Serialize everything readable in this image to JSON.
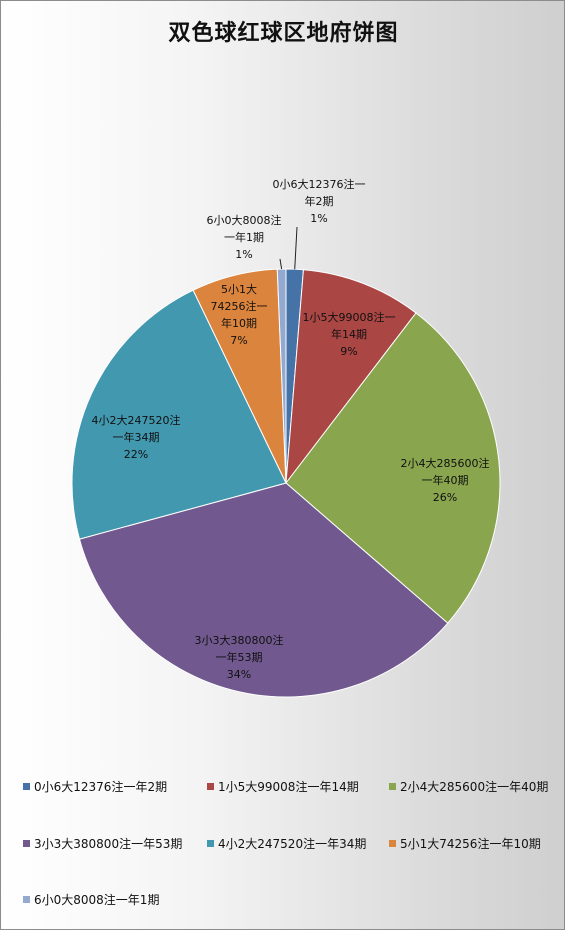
{
  "chart_data": {
    "type": "pie",
    "title": "双色球红球区地府饼图",
    "slices": [
      {
        "name": "0小6大12376注一年2期",
        "value": 2,
        "color": "#4572A7",
        "label_lines": [
          "0小6大12376注一",
          "年2期",
          "1%"
        ]
      },
      {
        "name": "1小5大99008注一年14期",
        "value": 14,
        "color": "#AA4643",
        "label_lines": [
          "1小5大99008注一",
          "年14期",
          "9%"
        ]
      },
      {
        "name": "2小4大285600注一年40期",
        "value": 40,
        "color": "#89A54E",
        "label_lines": [
          "2小4大285600注",
          "一年40期",
          "26%"
        ]
      },
      {
        "name": "3小3大380800注一年53期",
        "value": 53,
        "color": "#71588F",
        "label_lines": [
          "3小3大380800注",
          "一年53期",
          "34%"
        ]
      },
      {
        "name": "4小2大247520注一年34期",
        "value": 34,
        "color": "#4198AF",
        "label_lines": [
          "4小2大247520注",
          "一年34期",
          "22%"
        ]
      },
      {
        "name": "5小1大74256注一年10期",
        "value": 10,
        "color": "#DB843D",
        "label_lines": [
          "5小1大",
          "74256注一",
          "年10期",
          "7%"
        ]
      },
      {
        "name": "6小0大8008注一年1期",
        "value": 1,
        "color": "#93A9CF",
        "label_lines": [
          "6小0大8008注",
          "一年1期",
          "1%"
        ]
      }
    ],
    "legend_position": "bottom"
  }
}
